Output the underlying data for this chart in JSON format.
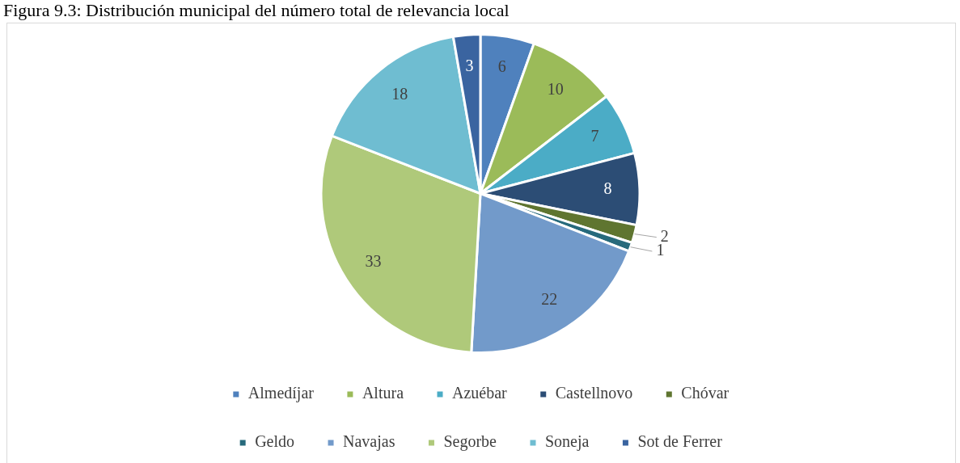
{
  "chart_data": {
    "type": "pie",
    "title": "Figura 9.3: Distribución municipal del número total de relevancia local",
    "categories": [
      "Almedíjar",
      "Altura",
      "Azuébar",
      "Castellnovo",
      "Chóvar",
      "Geldo",
      "Navajas",
      "Segorbe",
      "Soneja",
      "Sot de Ferrer"
    ],
    "values": [
      6,
      10,
      7,
      8,
      2,
      1,
      22,
      33,
      18,
      3
    ],
    "colors": [
      "#4f81bd",
      "#9bbb59",
      "#4bacc6",
      "#2c4d75",
      "#5f7530",
      "#276a7c",
      "#729aca",
      "#afc97a",
      "#6fbdd1",
      "#3a64a0"
    ],
    "data_labels": true,
    "legend": "bottom"
  }
}
